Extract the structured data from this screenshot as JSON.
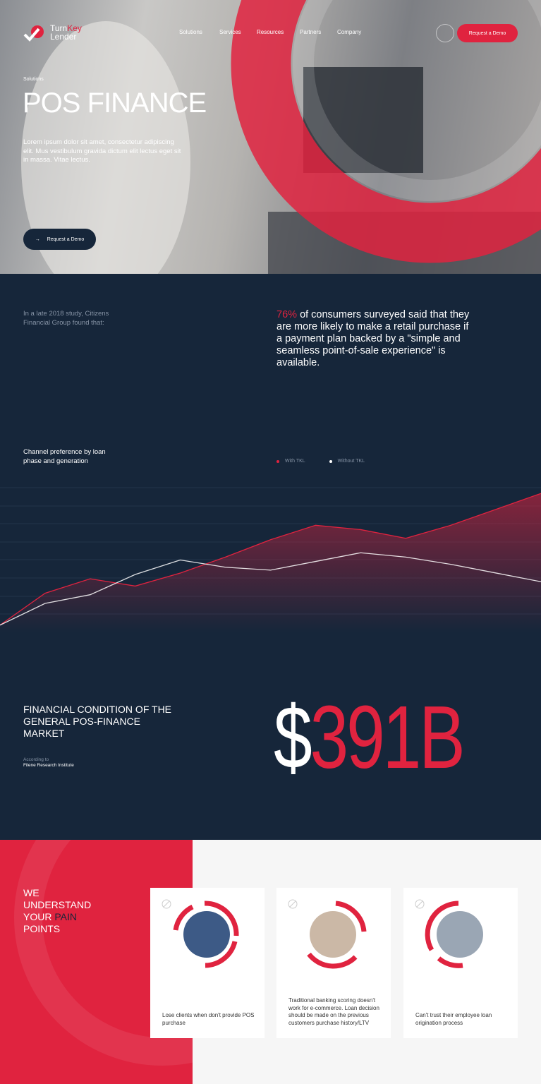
{
  "nav": {
    "logo_a": "Turn",
    "logo_b": "Key",
    "logo_c": "Lender",
    "links": [
      "Solutions",
      "Services",
      "Resources",
      "Partners",
      "Company"
    ],
    "cta": "Request a Demo"
  },
  "hero": {
    "breadcrumb": "Solutions",
    "title": "POS FINANCE",
    "text": "Lorem ipsum dolor sit amet, consectetur adipiscing elit. Mus vestibulum gravida dictum elit lectus eget sit in massa. Vitae lectus.",
    "button": "Request a Demo"
  },
  "stat": {
    "intro": "In a late 2018 study, Citizens Financial Group found that:",
    "highlight": "76%",
    "text": "of consumers surveyed said that they are more likely to make a retail purchase if a payment plan backed by a \"simple and seamless point-of-sale experience\" is available."
  },
  "chart_data": {
    "type": "line",
    "title": "Channel preference by loan phase and generation",
    "ylim": [
      0,
      100
    ],
    "series": [
      {
        "name": "With TKL",
        "color": "#e0233f",
        "values": [
          5,
          27,
          37,
          32,
          41,
          52,
          64,
          74,
          71,
          65,
          74,
          85,
          96
        ]
      },
      {
        "name": "Without TKL",
        "color": "#ffffff",
        "values": [
          5,
          20,
          26,
          40,
          50,
          45,
          43,
          49,
          55,
          52,
          47,
          41,
          35
        ]
      }
    ]
  },
  "market": {
    "title": "FINANCIAL CONDITION OF THE GENERAL POS-FINANCE MARKET",
    "source_label": "According to",
    "source": "Filene Research Institute",
    "currency": "$",
    "amount": "391B"
  },
  "pain": {
    "heading_lead": "WE UNDERSTAND YOUR",
    "heading_accent": "PAIN",
    "heading_tail": "POINTS",
    "cards": [
      "Lose clients when don't provide POS purchase",
      "Traditional banking scoring doesn't work for e-commerce. Loan decision should be made on the previous customers purchase history/LTV",
      "Can't trust their employee loan origination process"
    ]
  }
}
